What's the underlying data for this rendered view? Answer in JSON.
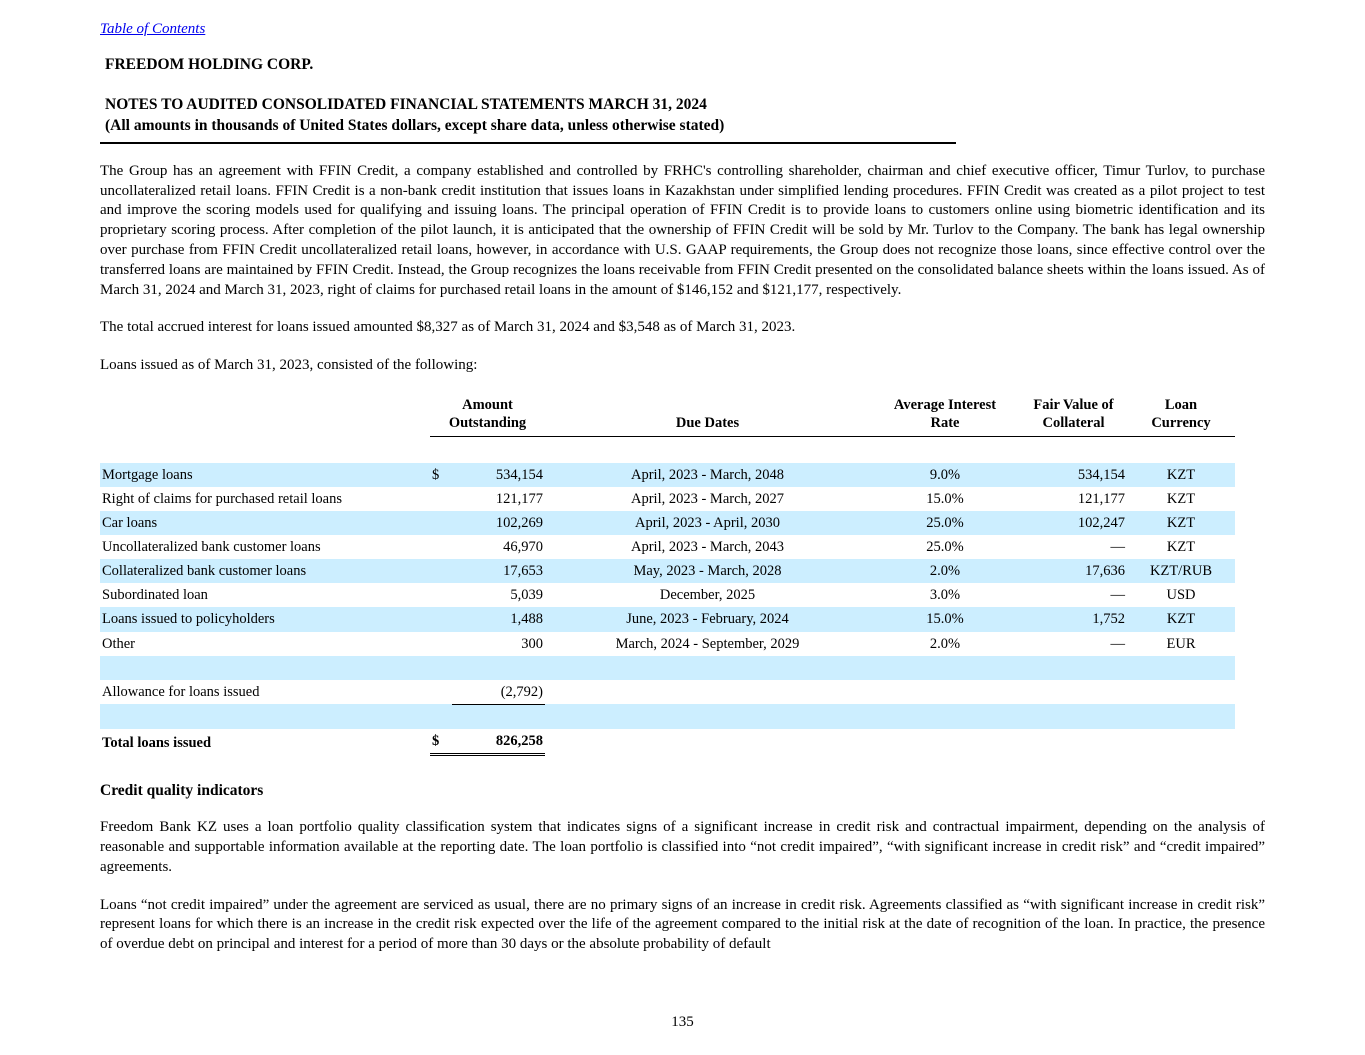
{
  "colors": {
    "highlight": "#CCEEFF",
    "link": "#0000EE"
  },
  "header": {
    "toc_link": "Table of Contents",
    "company": "FREEDOM HOLDING CORP.",
    "title": "NOTES TO AUDITED CONSOLIDATED FINANCIAL STATEMENTS MARCH 31, 2024",
    "subtitle": "(All amounts in thousands of United States dollars, except share data, unless otherwise stated)"
  },
  "body": {
    "para1": "The Group has an agreement with FFIN Credit, a company established and controlled by FRHC's controlling shareholder, chairman and chief executive officer, Timur Turlov, to purchase uncollateralized retail loans. FFIN Credit is a non-bank credit institution that issues loans in Kazakhstan under simplified lending procedures. FFIN Credit was created as a pilot project to test and improve the scoring models used for qualifying and issuing loans. The principal operation of FFIN Credit is to provide loans to customers online using biometric identification and its proprietary scoring process. After completion of the pilot launch, it is anticipated that the ownership of FFIN Credit will be sold by Mr. Turlov to the Company. The bank has legal ownership over purchase from FFIN Credit uncollateralized retail loans, however, in accordance with U.S. GAAP requirements, the Group does not recognize those loans, since effective control over the transferred loans are maintained by FFIN Credit. Instead, the Group recognizes the loans receivable from FFIN Credit presented on the consolidated balance sheets within the loans issued.  As of March 31, 2024 and March 31, 2023, right of claims for purchased retail loans in the amount of $146,152 and $121,177, respectively.",
    "para2": "The total accrued interest for loans issued amounted $8,327 as of March 31, 2024 and $3,548 as of March 31, 2023.",
    "para3": "Loans issued as of March 31, 2023, consisted of the following:",
    "credit_quality_heading": "Credit quality indicators",
    "para4": "Freedom Bank KZ uses a loan portfolio quality classification system that indicates signs of a significant increase in credit risk and contractual impairment, depending on the analysis of reasonable and supportable information available at the reporting date. The loan portfolio is classified into “not credit impaired”, “with significant increase in credit risk” and “credit impaired” agreements.",
    "para5": "Loans “not credit impaired” under the agreement are serviced as usual, there are no primary signs of an increase in credit risk. Agreements classified as “with significant increase in credit risk” represent loans for which there is an increase in the credit risk expected over the life of the agreement compared to the initial risk at the date of recognition of the loan. In practice, the presence of overdue debt on principal and interest for a period of more than 30 days or the absolute probability of default"
  },
  "table": {
    "headers": {
      "amount": "Amount\nOutstanding",
      "due": "Due Dates",
      "rate": "Average Interest\nRate",
      "fair": "Fair Value of\nCollateral",
      "currency": "Loan\nCurrency"
    },
    "rows": [
      {
        "type": "data",
        "highlight": true,
        "label": "Mortgage loans",
        "dollar": "$",
        "amount": "534,154",
        "due": "April, 2023 - March, 2048",
        "rate": "9.0%",
        "fair": "534,154",
        "currency": "KZT"
      },
      {
        "type": "data",
        "highlight": false,
        "label": "Right of claims for purchased retail loans",
        "dollar": "",
        "amount": "121,177",
        "due": "April, 2023 - March, 2027",
        "rate": "15.0%",
        "fair": "121,177",
        "currency": "KZT"
      },
      {
        "type": "data",
        "highlight": true,
        "label": "Car loans",
        "dollar": "",
        "amount": "102,269",
        "due": "April, 2023 - April, 2030",
        "rate": "25.0%",
        "fair": "102,247",
        "currency": "KZT"
      },
      {
        "type": "data",
        "highlight": false,
        "label": "Uncollateralized bank customer loans",
        "dollar": "",
        "amount": "46,970",
        "due": "April, 2023 - March, 2043",
        "rate": "25.0%",
        "fair": "—",
        "currency": "KZT"
      },
      {
        "type": "data",
        "highlight": true,
        "label": "Collateralized bank customer loans",
        "dollar": "",
        "amount": "17,653",
        "due": "May, 2023 - March, 2028",
        "rate": "2.0%",
        "fair": "17,636",
        "currency": "KZT/RUB"
      },
      {
        "type": "data",
        "highlight": false,
        "label": "Subordinated loan",
        "dollar": "",
        "amount": "5,039",
        "due": "December, 2025",
        "rate": "3.0%",
        "fair": "—",
        "currency": "USD"
      },
      {
        "type": "data",
        "highlight": true,
        "label": "Loans issued to policyholders",
        "dollar": "",
        "amount": "1,488",
        "due": "June, 2023 - February, 2024",
        "rate": "15.0%",
        "fair": "1,752",
        "currency": "KZT"
      },
      {
        "type": "data",
        "highlight": false,
        "label": "Other",
        "dollar": "",
        "amount": "300",
        "due": "March, 2024 - September, 2029",
        "rate": "2.0%",
        "fair": "—",
        "currency": "EUR"
      },
      {
        "type": "spacer",
        "highlight": true
      },
      {
        "type": "allowance",
        "highlight": false,
        "label": "Allowance for loans issued",
        "dollar": "",
        "amount": "(2,792)",
        "due": "",
        "rate": "",
        "fair": "",
        "currency": ""
      },
      {
        "type": "spacer",
        "highlight": true
      },
      {
        "type": "total",
        "highlight": false,
        "label": "Total loans issued",
        "dollar": "$",
        "amount": "826,258",
        "due": "",
        "rate": "",
        "fair": "",
        "currency": ""
      }
    ]
  },
  "footer": {
    "page_number": "135"
  }
}
